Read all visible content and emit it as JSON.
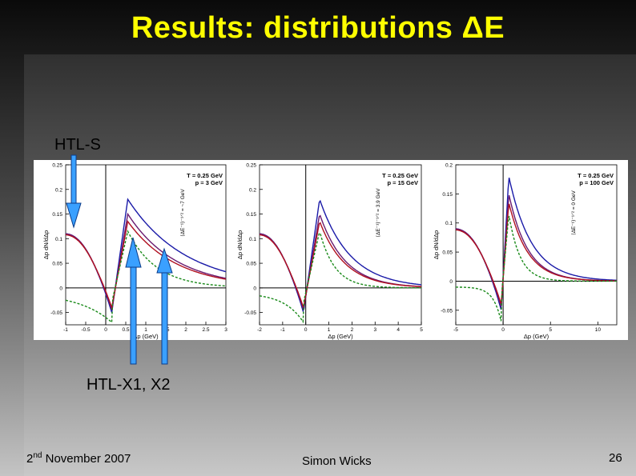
{
  "slide": {
    "title": "Results: distributions ΔE",
    "label_htl_s": "HTL-S",
    "label_htl_x": "HTL-X1, X2",
    "footer_date_day": "2",
    "footer_date_sup": "nd",
    "footer_date_rest": " November 2007",
    "footer_author": "Simon Wicks",
    "page_number": "26"
  },
  "colors": {
    "title": "#ffff00",
    "blue_curve": "#1a1aa8",
    "red_curve": "#b01020",
    "purple_curve": "#6a1a70",
    "green_dashed": "#1a8a1a",
    "arrow_fill": "#3aa0ff"
  },
  "chart_data": [
    {
      "type": "line",
      "xlabel": "Δp (GeV)",
      "ylabel": "Δp dN/dΔp",
      "xlim": [
        -1,
        3
      ],
      "ylim": [
        -0.075,
        0.25
      ],
      "x_ticks": [
        "-1",
        "-0.5",
        "0",
        "0.5",
        "1",
        "1.5",
        "2",
        "2.5",
        "3"
      ],
      "y_ticks": [
        "0.25",
        "0.2",
        "0.15",
        "0.1",
        "0.05",
        "0",
        "-0.05"
      ],
      "annotation_line1": "T = 0.25 GeV",
      "annotation_line2": "p = 3 GeV",
      "vertical_label": "⟨ΔE⁻¹⟩⁻¹ᐟ² = ~7 GeV"
    },
    {
      "type": "line",
      "xlabel": "Δp (GeV)",
      "ylabel": "Δp dN/dΔp",
      "xlim": [
        -2,
        5
      ],
      "ylim": [
        -0.075,
        0.25
      ],
      "x_ticks": [
        "-2",
        "-1",
        "0",
        "1",
        "2",
        "3",
        "4",
        "5"
      ],
      "y_ticks": [
        "0.25",
        "0.2",
        "0.15",
        "0.1",
        "0.05",
        "0",
        "-0.05"
      ],
      "annotation_line1": "T = 0.25 GeV",
      "annotation_line2": "p = 15 GeV",
      "vertical_label": "⟨ΔE⁻¹⟩⁻¹ᐟ² = 3.9 GeV"
    },
    {
      "type": "line",
      "xlabel": "Δp (GeV)",
      "ylabel": "Δp dN/dΔp",
      "xlim": [
        -5,
        12
      ],
      "ylim": [
        -0.075,
        0.2
      ],
      "x_ticks": [
        "-5",
        "0",
        "5",
        "10"
      ],
      "y_ticks": [
        "0.2",
        "0.15",
        "0.1",
        "0.05",
        "0",
        "-0.05"
      ],
      "annotation_line1": "T = 0.25 GeV",
      "annotation_line2": "p = 100 GeV",
      "vertical_label": "⟨ΔE⁻¹⟩⁻¹ᐟ² = 0 GeV"
    }
  ]
}
